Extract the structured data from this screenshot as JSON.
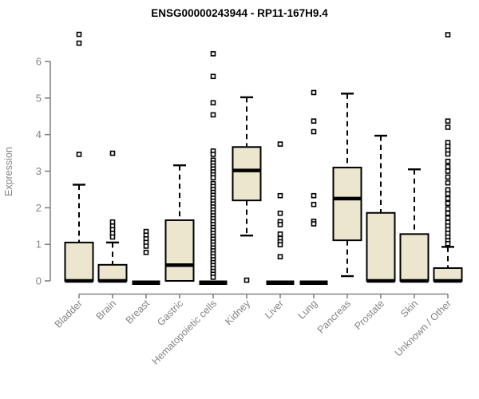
{
  "chart_data": {
    "type": "boxplot",
    "title": "ENSG00000243944 - RP11-167H9.4",
    "ylabel": "Expression",
    "xlabel": "",
    "ylim": [
      0,
      6.9
    ],
    "yticks": [
      0,
      1,
      2,
      3,
      4,
      5,
      6
    ],
    "grid": false,
    "legend": "none",
    "categories": [
      "Bladder",
      "Brain",
      "Breast",
      "Gastric",
      "Hematopoietic cells",
      "Kidney",
      "Liver",
      "Lung",
      "Pancreas",
      "Prostate",
      "Skin",
      "Unknown / Other"
    ],
    "series": [
      {
        "category": "Bladder",
        "q1": 0,
        "median": 0,
        "q3": 1.05,
        "whisker_low": 0,
        "whisker_high": 2.63,
        "outliers": [
          3.46,
          6.5,
          6.74
        ]
      },
      {
        "category": "Brain",
        "q1": 0,
        "median": 0,
        "q3": 0.44,
        "whisker_low": 0,
        "whisker_high": 1.05,
        "outliers": [
          3.49,
          1.61,
          1.5,
          1.4,
          1.3,
          1.2
        ]
      },
      {
        "category": "Breast",
        "q1": 0,
        "median": 0,
        "q3": 0,
        "whisker_low": 0,
        "whisker_high": 0,
        "outliers": [
          1.35,
          1.25,
          1.15,
          1.05,
          0.95,
          0.78
        ]
      },
      {
        "category": "Gastric",
        "q1": 0,
        "median": 0.43,
        "q3": 1.66,
        "whisker_low": 0,
        "whisker_high": 3.16,
        "outliers": []
      },
      {
        "category": "Hematopoietic cells",
        "q1": 0,
        "median": 0,
        "q3": 0,
        "whisker_low": 0,
        "whisker_high": 0,
        "outliers": [
          6.21,
          5.59,
          4.87,
          4.54,
          3.55,
          3.46,
          3.3,
          3.22,
          3.14,
          3.06,
          2.98,
          2.9,
          2.82,
          2.66,
          2.58,
          2.5,
          2.42,
          2.34,
          2.26,
          2.18,
          2.1,
          2.02,
          1.94,
          1.86,
          1.78,
          1.7,
          1.62,
          1.54,
          1.46,
          1.38,
          1.3,
          1.22,
          1.14,
          1.06,
          0.98,
          0.9,
          0.82,
          0.74,
          0.66,
          0.58,
          0.5,
          0.42,
          0.34,
          0.26,
          0.18,
          0.1
        ]
      },
      {
        "category": "Kidney",
        "q1": 2.2,
        "median": 3.02,
        "q3": 3.66,
        "whisker_low": 1.24,
        "whisker_high": 5.02,
        "outliers": [
          0.02
        ]
      },
      {
        "category": "Liver",
        "q1": 0,
        "median": 0,
        "q3": 0,
        "whisker_low": 0,
        "whisker_high": 0,
        "outliers": [
          3.74,
          2.33,
          1.85,
          1.62,
          1.54,
          1.28,
          1.16,
          1.07,
          0.99,
          0.66
        ]
      },
      {
        "category": "Lung",
        "q1": 0,
        "median": 0,
        "q3": 0,
        "whisker_low": 0,
        "whisker_high": 0,
        "outliers": [
          5.15,
          4.37,
          4.08,
          2.33,
          2.09,
          1.63,
          1.56
        ]
      },
      {
        "category": "Pancreas",
        "q1": 1.11,
        "median": 2.25,
        "q3": 3.1,
        "whisker_low": 0.13,
        "whisker_high": 5.12,
        "outliers": []
      },
      {
        "category": "Prostate",
        "q1": 0,
        "median": 0,
        "q3": 1.86,
        "whisker_low": 0,
        "whisker_high": 3.97,
        "outliers": []
      },
      {
        "category": "Skin",
        "q1": 0,
        "median": 0,
        "q3": 1.28,
        "whisker_low": 0,
        "whisker_high": 3.05,
        "outliers": []
      },
      {
        "category": "Unknown / Other",
        "q1": 0,
        "median": 0,
        "q3": 0.35,
        "whisker_low": 0,
        "whisker_high": 0.93,
        "outliers": [
          6.73,
          4.37,
          4.2,
          3.78,
          3.68,
          3.57,
          3.47,
          3.27,
          3.12,
          3.0,
          2.84,
          2.68,
          2.49,
          2.38,
          2.25,
          2.12,
          1.97,
          1.85,
          1.72,
          1.6,
          1.5,
          1.4,
          1.3,
          1.2,
          1.1,
          1.02
        ]
      }
    ],
    "colors": {
      "background": "#ffffff",
      "box_fill": "#EBE6CD",
      "box_border": "#000000",
      "median": "#000000",
      "whisker": "#000000",
      "outlier_border": "#000000",
      "outlier_fill": "#ffffff",
      "axis": "#848484",
      "tick_label": "#848484",
      "title": "#000000"
    }
  }
}
